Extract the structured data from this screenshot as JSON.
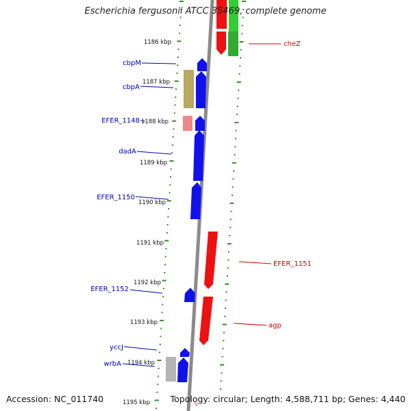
{
  "title": "Escherichia fergusonii ATCC 35469, complete genome",
  "footer": {
    "accession": "Accession: NC_011740",
    "topology": "Topology: circular; Length: 4,588,711 bp; Genes: 4,440"
  },
  "colors": {
    "backbone": "#8a8a8a",
    "tick": "#2e8b22",
    "forward_gene": "#ee1111",
    "reverse_gene": "#1111ee",
    "forward_label": "#cc0000",
    "reverse_label": "#0000aa",
    "rna_like": "#b8a860",
    "pseudo_like": "#ee8888",
    "gray_feature": "#b5b5b5",
    "green_feature": "#33cc33"
  },
  "scale_labels": [
    "1186 kbp",
    "1187 kbp",
    "1188 kbp",
    "1189 kbp",
    "1190 kbp",
    "1191 kbp",
    "1192 kbp",
    "1193 kbp",
    "1194 kbp",
    "1195 kbp"
  ],
  "gene_labels": {
    "forward": [
      "cheZ",
      "EFER_1151",
      "agp"
    ],
    "reverse": [
      "cbpM",
      "cbpA",
      "EFER_1148",
      "dadA",
      "EFER_1150",
      "EFER_1152",
      "yccJ",
      "wrbA"
    ]
  }
}
